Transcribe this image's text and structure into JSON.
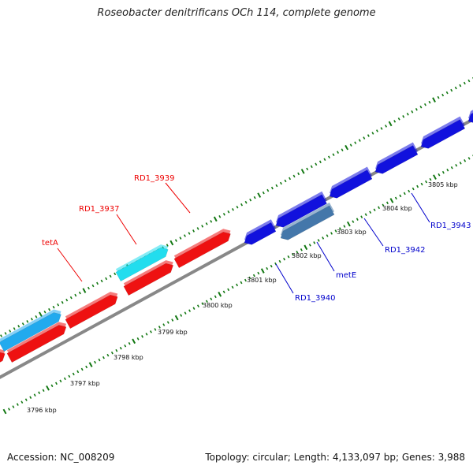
{
  "header": {
    "title": "Roseobacter denitrificans OCh 114, complete genome"
  },
  "footer": {
    "accession": "Accession: NC_008209",
    "genome_info": "Topology: circular; Length: 4,133,097 bp; Genes: 3,988"
  },
  "colors": {
    "forward_gene": "#ee1111",
    "forward_rna": "#22ddee",
    "reverse_gene": "#1111dd",
    "reverse_rna": "#4477aa",
    "backbone": "#888888",
    "tick": "#117711"
  },
  "map": {
    "kbp_labels": [
      "3796 kbp",
      "3797 kbp",
      "3798 kbp",
      "3799 kbp",
      "3800 kbp",
      "3801 kbp",
      "3802 kbp",
      "3803 kbp",
      "3804 kbp",
      "3805 kbp"
    ],
    "gene_labels": [
      {
        "name": "tetA",
        "strand": "forward"
      },
      {
        "name": "RD1_3937",
        "strand": "forward"
      },
      {
        "name": "RD1_3939",
        "strand": "forward"
      },
      {
        "name": "RD1_3940",
        "strand": "reverse"
      },
      {
        "name": "metE",
        "strand": "reverse"
      },
      {
        "name": "RD1_3942",
        "strand": "reverse"
      },
      {
        "name": "RD1_3943",
        "strand": "reverse"
      }
    ]
  }
}
